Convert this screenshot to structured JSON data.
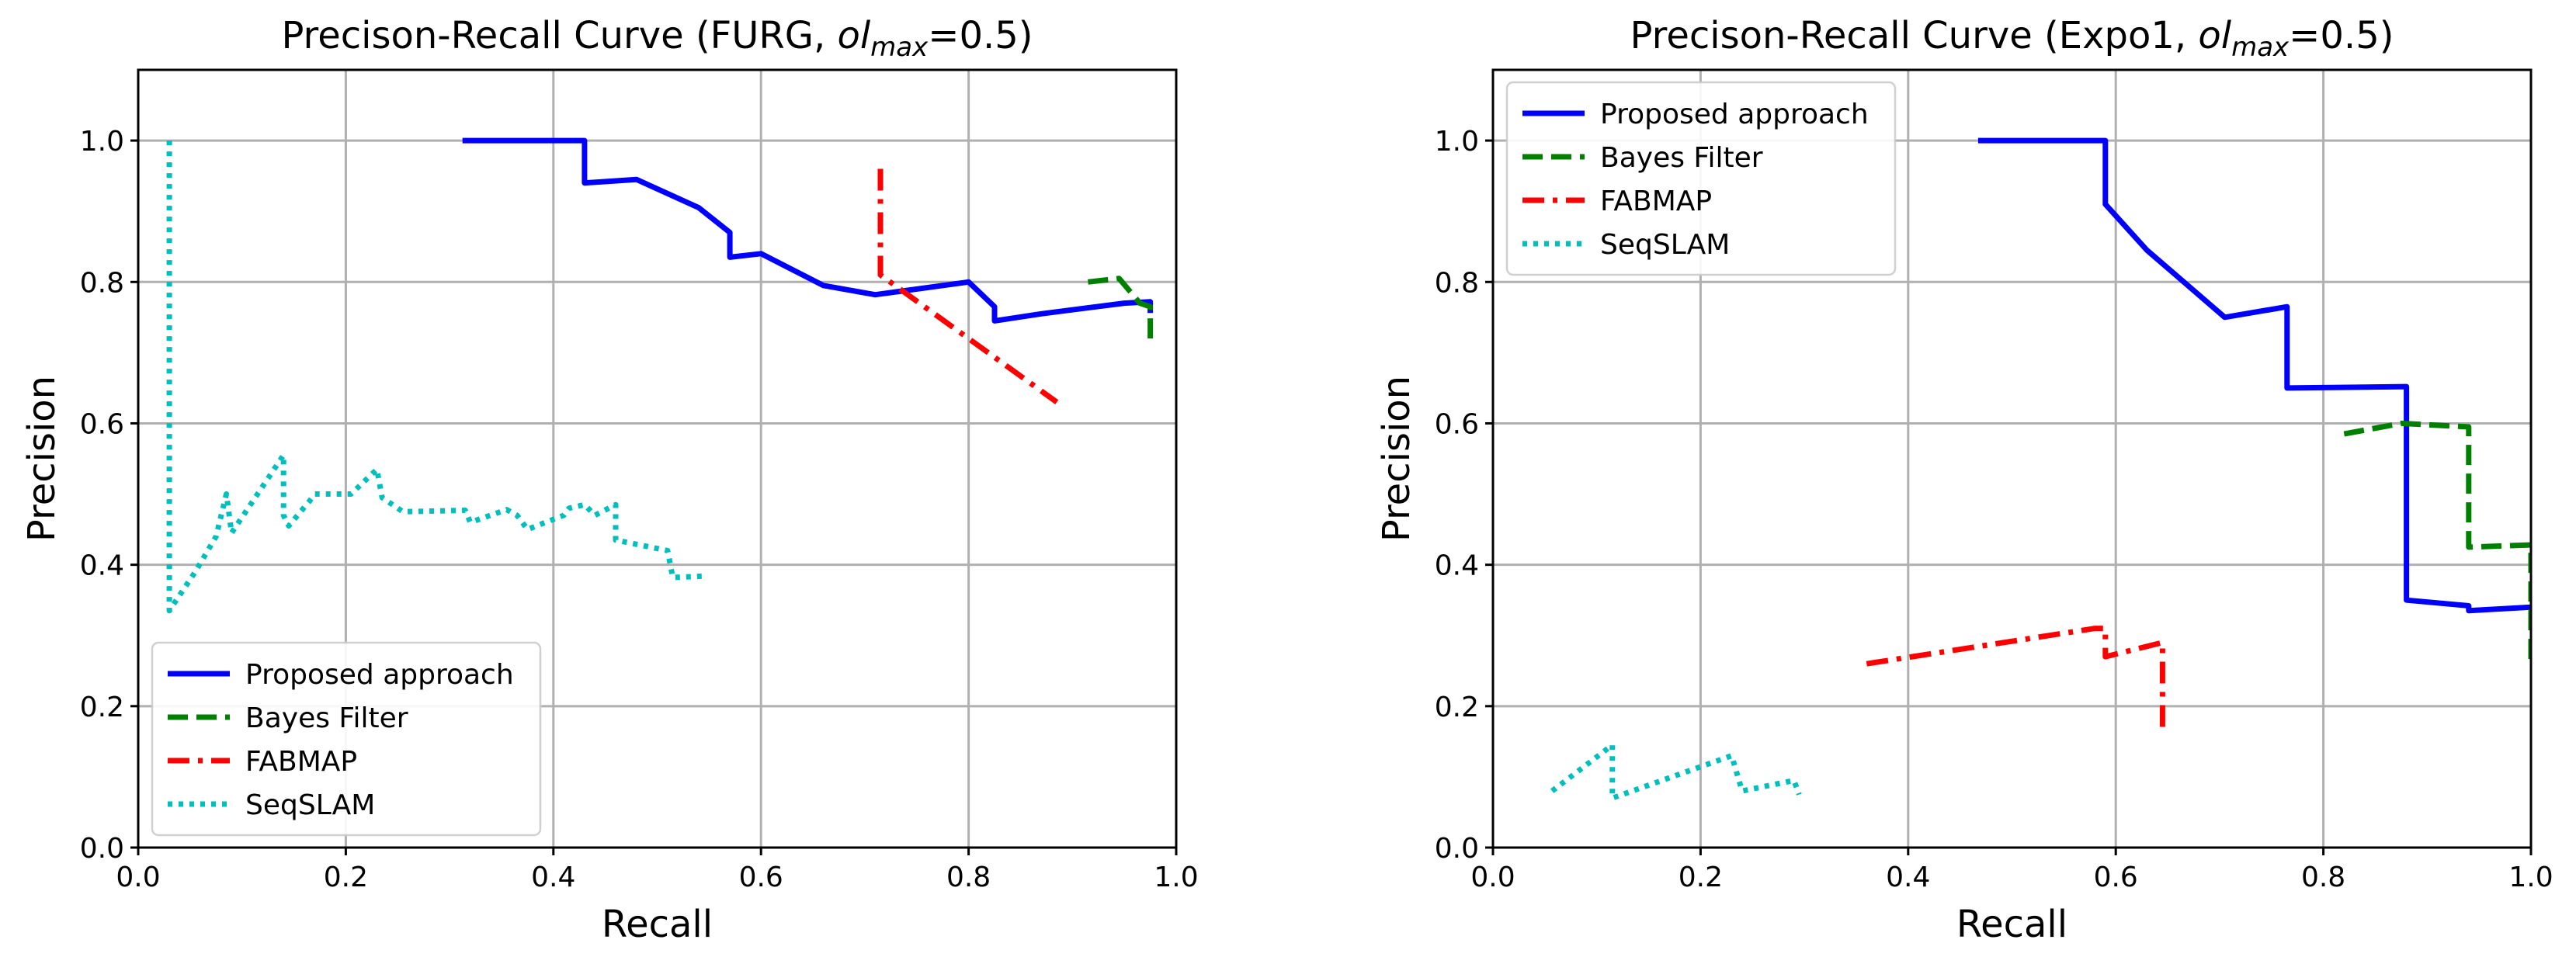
{
  "chart_data": [
    {
      "type": "line",
      "title_main": "Precison-Recall Curve (FURG, ",
      "title_var": "ol",
      "title_sub": "max",
      "title_end": "=0.5)",
      "xlabel": "Recall",
      "ylabel": "Precision",
      "xlim": [
        0,
        1
      ],
      "ylim": [
        0,
        1.1
      ],
      "xticks": [
        "0.0",
        "0.2",
        "0.4",
        "0.6",
        "0.8",
        "1.0"
      ],
      "yticks": [
        "0.0",
        "0.2",
        "0.4",
        "0.6",
        "0.8",
        "1.0"
      ],
      "grid": true,
      "legend_position": "lower-left",
      "series": [
        {
          "name": "Proposed approach",
          "color": "#0000ff",
          "style": "solid",
          "points": [
            [
              0.315,
              1.0
            ],
            [
              0.43,
              1.0
            ],
            [
              0.43,
              0.94
            ],
            [
              0.48,
              0.945
            ],
            [
              0.54,
              0.905
            ],
            [
              0.57,
              0.87
            ],
            [
              0.57,
              0.835
            ],
            [
              0.6,
              0.84
            ],
            [
              0.66,
              0.795
            ],
            [
              0.71,
              0.782
            ],
            [
              0.8,
              0.8
            ],
            [
              0.825,
              0.765
            ],
            [
              0.825,
              0.745
            ],
            [
              0.87,
              0.755
            ],
            [
              0.95,
              0.77
            ],
            [
              0.975,
              0.772
            ],
            [
              0.975,
              0.76
            ]
          ]
        },
        {
          "name": "Bayes Filter",
          "color": "#008000",
          "style": "dashed",
          "points": [
            [
              0.915,
              0.8
            ],
            [
              0.945,
              0.805
            ],
            [
              0.965,
              0.77
            ],
            [
              0.975,
              0.765
            ],
            [
              0.975,
              0.72
            ]
          ]
        },
        {
          "name": "FABMAP",
          "color": "#ff0000",
          "style": "dashdot",
          "points": [
            [
              0.715,
              0.96
            ],
            [
              0.715,
              0.81
            ],
            [
              0.885,
              0.63
            ]
          ]
        },
        {
          "name": "SeqSLAM",
          "color": "#00bfbf",
          "style": "dotted",
          "points": [
            [
              0.03,
              1.0
            ],
            [
              0.03,
              0.335
            ],
            [
              0.055,
              0.39
            ],
            [
              0.075,
              0.44
            ],
            [
              0.085,
              0.5
            ],
            [
              0.09,
              0.445
            ],
            [
              0.14,
              0.555
            ],
            [
              0.14,
              0.47
            ],
            [
              0.145,
              0.455
            ],
            [
              0.165,
              0.49
            ],
            [
              0.17,
              0.5
            ],
            [
              0.205,
              0.5
            ],
            [
              0.23,
              0.535
            ],
            [
              0.235,
              0.495
            ],
            [
              0.255,
              0.475
            ],
            [
              0.315,
              0.477
            ],
            [
              0.32,
              0.46
            ],
            [
              0.355,
              0.478
            ],
            [
              0.365,
              0.47
            ],
            [
              0.375,
              0.45
            ],
            [
              0.41,
              0.47
            ],
            [
              0.415,
              0.48
            ],
            [
              0.43,
              0.485
            ],
            [
              0.44,
              0.47
            ],
            [
              0.46,
              0.485
            ],
            [
              0.46,
              0.435
            ],
            [
              0.51,
              0.42
            ],
            [
              0.515,
              0.382
            ],
            [
              0.545,
              0.384
            ]
          ]
        }
      ]
    },
    {
      "type": "line",
      "title_main": "Precison-Recall Curve (Expo1, ",
      "title_var": "ol",
      "title_sub": "max",
      "title_end": "=0.5)",
      "xlabel": "Recall",
      "ylabel": "Precision",
      "xlim": [
        0,
        1
      ],
      "ylim": [
        0,
        1.1
      ],
      "xticks": [
        "0.0",
        "0.2",
        "0.4",
        "0.6",
        "0.8",
        "1.0"
      ],
      "yticks": [
        "0.0",
        "0.2",
        "0.4",
        "0.6",
        "0.8",
        "1.0"
      ],
      "grid": true,
      "legend_position": "upper-left",
      "series": [
        {
          "name": "Proposed approach",
          "color": "#0000ff",
          "style": "solid",
          "points": [
            [
              0.47,
              1.0
            ],
            [
              0.59,
              1.0
            ],
            [
              0.59,
              0.91
            ],
            [
              0.63,
              0.845
            ],
            [
              0.705,
              0.75
            ],
            [
              0.765,
              0.765
            ],
            [
              0.765,
              0.65
            ],
            [
              0.88,
              0.652
            ],
            [
              0.88,
              0.35
            ],
            [
              0.94,
              0.342
            ],
            [
              0.94,
              0.335
            ],
            [
              1.0,
              0.34
            ]
          ]
        },
        {
          "name": "Bayes Filter",
          "color": "#008000",
          "style": "dashed",
          "points": [
            [
              0.82,
              0.585
            ],
            [
              0.875,
              0.6
            ],
            [
              0.94,
              0.595
            ],
            [
              0.94,
              0.425
            ],
            [
              1.0,
              0.428
            ],
            [
              1.0,
              0.265
            ]
          ]
        },
        {
          "name": "FABMAP",
          "color": "#ff0000",
          "style": "dashdot",
          "points": [
            [
              0.36,
              0.26
            ],
            [
              0.58,
              0.31
            ],
            [
              0.59,
              0.31
            ],
            [
              0.59,
              0.27
            ],
            [
              0.645,
              0.29
            ],
            [
              0.645,
              0.165
            ]
          ]
        },
        {
          "name": "SeqSLAM",
          "color": "#00bfbf",
          "style": "dotted",
          "points": [
            [
              0.057,
              0.08
            ],
            [
              0.115,
              0.145
            ],
            [
              0.115,
              0.07
            ],
            [
              0.23,
              0.13
            ],
            [
              0.24,
              0.08
            ],
            [
              0.29,
              0.095
            ],
            [
              0.295,
              0.075
            ]
          ]
        }
      ]
    }
  ]
}
